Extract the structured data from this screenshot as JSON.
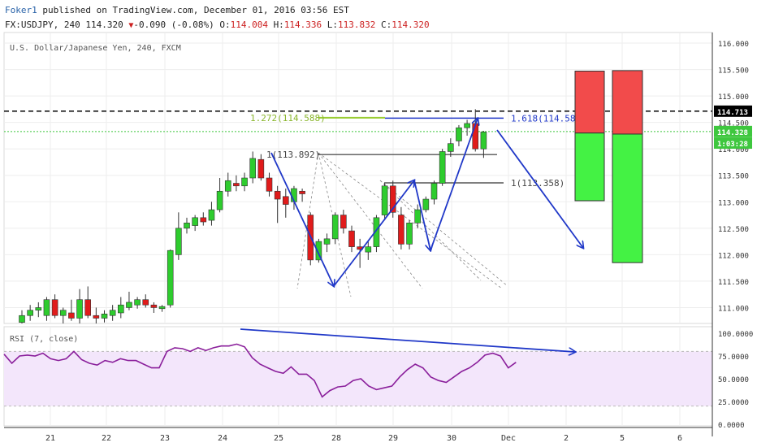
{
  "header": {
    "author": "Foker1",
    "published_text": "published on TradingView.com, December 01, 2016 03:56 EST",
    "symbol_line": "FX:USDJPY, 240",
    "last": "114.320",
    "change": "-0.090 (-0.08%)",
    "o_label": "O:",
    "o_value": "114.004",
    "h_label": "H:",
    "h_value": "114.336",
    "l_label": "L:",
    "l_value": "113.832",
    "c_label": "C:",
    "c_value": "114.320"
  },
  "colors": {
    "up": "#2ecc2e",
    "down": "#e01b1b",
    "arrow": "#2038c8",
    "rsi": "#8a1f9b",
    "rsi_band": "#f3e6fb"
  },
  "chart_data": [
    {
      "type": "candlestick",
      "title": "U.S. Dollar/Japanese Yen, 240, FXCM",
      "ylim": [
        110.7,
        116.2
      ],
      "yticks": [
        "116.000",
        "115.500",
        "115.000",
        "114.500",
        "114.000",
        "113.500",
        "113.000",
        "112.500",
        "112.000",
        "111.500",
        "111.000"
      ],
      "xticks": [
        "21",
        "22",
        "23",
        "24",
        "25",
        "28",
        "29",
        "30",
        "Dec",
        "2",
        "5",
        "6"
      ],
      "price_labels": {
        "line_price": "114.713",
        "last_price": "114.328",
        "countdown": "1:03:28"
      },
      "candles": [
        {
          "o": 110.72,
          "h": 110.95,
          "l": 110.7,
          "c": 110.85
        },
        {
          "o": 110.85,
          "h": 111.05,
          "l": 110.75,
          "c": 110.95
        },
        {
          "o": 110.95,
          "h": 111.1,
          "l": 110.82,
          "c": 111.0
        },
        {
          "o": 110.85,
          "h": 111.2,
          "l": 110.75,
          "c": 111.15
        },
        {
          "o": 111.15,
          "h": 111.25,
          "l": 110.8,
          "c": 110.85
        },
        {
          "o": 110.85,
          "h": 111.0,
          "l": 110.7,
          "c": 110.95
        },
        {
          "o": 110.9,
          "h": 111.15,
          "l": 110.75,
          "c": 110.8
        },
        {
          "o": 110.8,
          "h": 111.35,
          "l": 110.7,
          "c": 111.15
        },
        {
          "o": 111.15,
          "h": 111.4,
          "l": 110.8,
          "c": 110.85
        },
        {
          "o": 110.85,
          "h": 111.0,
          "l": 110.7,
          "c": 110.8
        },
        {
          "o": 110.8,
          "h": 110.95,
          "l": 110.72,
          "c": 110.88
        },
        {
          "o": 110.85,
          "h": 111.05,
          "l": 110.75,
          "c": 110.95
        },
        {
          "o": 110.9,
          "h": 111.2,
          "l": 110.8,
          "c": 111.05
        },
        {
          "o": 111.0,
          "h": 111.3,
          "l": 110.95,
          "c": 111.1
        },
        {
          "o": 111.05,
          "h": 111.2,
          "l": 110.98,
          "c": 111.15
        },
        {
          "o": 111.15,
          "h": 111.25,
          "l": 111.0,
          "c": 111.05
        },
        {
          "o": 111.05,
          "h": 111.1,
          "l": 110.9,
          "c": 111.0
        },
        {
          "o": 110.98,
          "h": 111.05,
          "l": 110.92,
          "c": 111.02
        },
        {
          "o": 111.05,
          "h": 112.1,
          "l": 111.0,
          "c": 112.08
        },
        {
          "o": 112.0,
          "h": 112.8,
          "l": 111.9,
          "c": 112.5
        },
        {
          "o": 112.5,
          "h": 112.7,
          "l": 112.4,
          "c": 112.6
        },
        {
          "o": 112.55,
          "h": 112.75,
          "l": 112.45,
          "c": 112.7
        },
        {
          "o": 112.7,
          "h": 112.8,
          "l": 112.55,
          "c": 112.62
        },
        {
          "o": 112.65,
          "h": 113.0,
          "l": 112.55,
          "c": 112.85
        },
        {
          "o": 112.85,
          "h": 113.45,
          "l": 112.8,
          "c": 113.2
        },
        {
          "o": 113.2,
          "h": 113.55,
          "l": 113.1,
          "c": 113.4
        },
        {
          "o": 113.35,
          "h": 113.5,
          "l": 113.2,
          "c": 113.3
        },
        {
          "o": 113.3,
          "h": 113.55,
          "l": 113.2,
          "c": 113.45
        },
        {
          "o": 113.45,
          "h": 113.95,
          "l": 113.35,
          "c": 113.82
        },
        {
          "o": 113.8,
          "h": 113.9,
          "l": 113.4,
          "c": 113.45
        },
        {
          "o": 113.45,
          "h": 113.55,
          "l": 113.1,
          "c": 113.2
        },
        {
          "o": 113.2,
          "h": 113.3,
          "l": 112.6,
          "c": 113.05
        },
        {
          "o": 113.1,
          "h": 113.25,
          "l": 112.7,
          "c": 112.95
        },
        {
          "o": 113.0,
          "h": 113.3,
          "l": 112.85,
          "c": 113.25
        },
        {
          "o": 113.2,
          "h": 113.25,
          "l": 113.0,
          "c": 113.15
        },
        {
          "o": 112.75,
          "h": 112.8,
          "l": 111.8,
          "c": 111.9
        },
        {
          "o": 111.9,
          "h": 112.3,
          "l": 111.85,
          "c": 112.25
        },
        {
          "o": 112.2,
          "h": 112.4,
          "l": 112.05,
          "c": 112.3
        },
        {
          "o": 112.3,
          "h": 112.8,
          "l": 112.2,
          "c": 112.75
        },
        {
          "o": 112.75,
          "h": 112.85,
          "l": 112.4,
          "c": 112.5
        },
        {
          "o": 112.45,
          "h": 112.55,
          "l": 112.05,
          "c": 112.15
        },
        {
          "o": 112.15,
          "h": 112.3,
          "l": 111.75,
          "c": 112.1
        },
        {
          "o": 112.05,
          "h": 112.25,
          "l": 111.9,
          "c": 112.15
        },
        {
          "o": 112.15,
          "h": 112.75,
          "l": 112.05,
          "c": 112.7
        },
        {
          "o": 112.75,
          "h": 113.35,
          "l": 112.65,
          "c": 113.3
        },
        {
          "o": 113.3,
          "h": 113.4,
          "l": 112.7,
          "c": 112.8
        },
        {
          "o": 112.75,
          "h": 112.9,
          "l": 112.1,
          "c": 112.2
        },
        {
          "o": 112.2,
          "h": 112.65,
          "l": 112.1,
          "c": 112.6
        },
        {
          "o": 112.6,
          "h": 112.95,
          "l": 112.5,
          "c": 112.85
        },
        {
          "o": 112.85,
          "h": 113.1,
          "l": 112.8,
          "c": 113.05
        },
        {
          "o": 113.05,
          "h": 113.4,
          "l": 112.95,
          "c": 113.35
        },
        {
          "o": 113.35,
          "h": 114.0,
          "l": 113.3,
          "c": 113.95
        },
        {
          "o": 113.95,
          "h": 114.2,
          "l": 113.85,
          "c": 114.1
        },
        {
          "o": 114.15,
          "h": 114.45,
          "l": 114.05,
          "c": 114.4
        },
        {
          "o": 114.4,
          "h": 114.55,
          "l": 114.25,
          "c": 114.48
        },
        {
          "o": 114.48,
          "h": 114.75,
          "l": 113.95,
          "c": 114.0
        },
        {
          "o": 114.0,
          "h": 114.34,
          "l": 113.83,
          "c": 114.32
        }
      ],
      "annotations": [
        {
          "text": "1.272(114.588)",
          "price": 114.588
        },
        {
          "text": "1.618(114.581)",
          "price": 114.581
        },
        {
          "text": "1(113.892)",
          "price": 113.892
        },
        {
          "text": "1(113.358)",
          "price": 113.358
        }
      ],
      "position_boxes": [
        {
          "target": 115.47,
          "entry": 114.3,
          "stop": 113.02
        },
        {
          "target": 115.48,
          "entry": 114.28,
          "stop": 111.85
        }
      ]
    },
    {
      "type": "line",
      "title": "RSI (7, close)",
      "ylim": [
        0,
        100
      ],
      "yticks": [
        "100.0000",
        "75.0000",
        "50.0000",
        "25.0000",
        "0.0000"
      ],
      "bands": [
        80,
        20
      ],
      "values": [
        77,
        67,
        75,
        76,
        75,
        78,
        72,
        70,
        72,
        80,
        71,
        67,
        65,
        70,
        68,
        72,
        70,
        70,
        66,
        62,
        62,
        80,
        84,
        83,
        80,
        84,
        81,
        84,
        86,
        86,
        88,
        85,
        73,
        66,
        62,
        58,
        56,
        63,
        55,
        55,
        48,
        30,
        37,
        41,
        42,
        48,
        50,
        42,
        38,
        40,
        42,
        52,
        60,
        66,
        62,
        52,
        48,
        46,
        52,
        58,
        62,
        68,
        76,
        78,
        75,
        62,
        68
      ]
    }
  ]
}
